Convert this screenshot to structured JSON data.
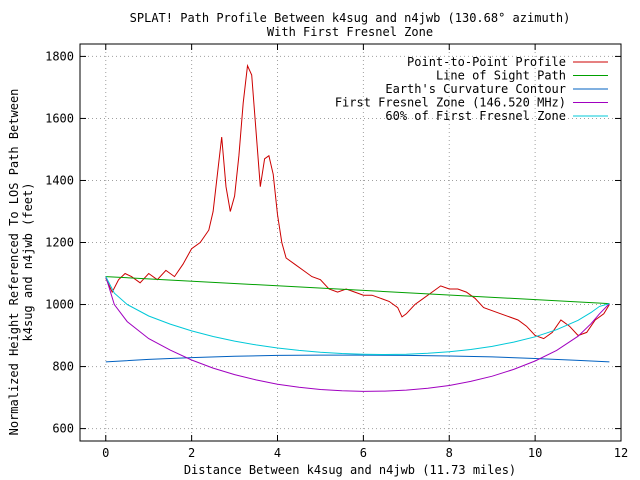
{
  "chart_data": {
    "type": "line",
    "title_line1": "SPLAT! Path Profile Between k4sug and n4jwb (130.68° azimuth)",
    "title_line2": "With First Fresnel Zone",
    "xlabel": "Distance Between k4sug and n4jwb (11.73 miles)",
    "ylabel_line1": "Normalized Height Referenced To LOS Path Between",
    "ylabel_line2": "k4sug and n4jwb (feet)",
    "xlim": [
      -0.6,
      12
    ],
    "ylim": [
      560,
      1840
    ],
    "x_ticks": [
      0,
      2,
      4,
      6,
      8,
      10,
      12
    ],
    "y_ticks": [
      600,
      800,
      1000,
      1200,
      1400,
      1600,
      1800
    ],
    "grid": true,
    "legend_position": "top-right",
    "series": [
      {
        "name": "Point-to-Point Profile",
        "color": "#cc0000",
        "x": [
          0,
          0.15,
          0.3,
          0.45,
          0.6,
          0.8,
          1.0,
          1.2,
          1.4,
          1.6,
          1.8,
          2.0,
          2.2,
          2.4,
          2.5,
          2.6,
          2.7,
          2.8,
          2.9,
          3.0,
          3.1,
          3.2,
          3.3,
          3.4,
          3.5,
          3.6,
          3.7,
          3.8,
          3.9,
          4.0,
          4.1,
          4.2,
          4.4,
          4.6,
          4.8,
          5.0,
          5.2,
          5.4,
          5.6,
          5.8,
          6.0,
          6.2,
          6.4,
          6.6,
          6.8,
          6.9,
          7.0,
          7.2,
          7.4,
          7.6,
          7.8,
          8.0,
          8.2,
          8.4,
          8.6,
          8.8,
          9.0,
          9.2,
          9.4,
          9.6,
          9.8,
          10.0,
          10.2,
          10.4,
          10.6,
          10.8,
          11.0,
          11.2,
          11.4,
          11.6,
          11.73
        ],
        "values": [
          1085,
          1040,
          1080,
          1100,
          1090,
          1070,
          1100,
          1080,
          1110,
          1090,
          1130,
          1180,
          1200,
          1240,
          1300,
          1420,
          1540,
          1380,
          1300,
          1350,
          1480,
          1650,
          1770,
          1740,
          1560,
          1380,
          1470,
          1480,
          1420,
          1290,
          1200,
          1150,
          1130,
          1110,
          1090,
          1080,
          1050,
          1040,
          1050,
          1040,
          1030,
          1030,
          1020,
          1010,
          990,
          960,
          970,
          1000,
          1020,
          1040,
          1060,
          1050,
          1050,
          1040,
          1020,
          990,
          980,
          970,
          960,
          950,
          930,
          900,
          890,
          910,
          950,
          930,
          900,
          910,
          950,
          970,
          1000
        ]
      },
      {
        "name": "Line of Sight Path",
        "color": "#00a000",
        "x": [
          0,
          11.73
        ],
        "values": [
          1090,
          1003
        ]
      },
      {
        "name": "Earth's Curvature Contour",
        "color": "#0060c0",
        "x": [
          0,
          1,
          2,
          3,
          4,
          5,
          5.865,
          7,
          8,
          9,
          10,
          11,
          11.73
        ],
        "values": [
          815,
          823,
          829,
          833,
          836,
          837,
          837,
          836,
          834,
          831,
          826,
          820,
          815
        ]
      },
      {
        "name": "First Fresnel Zone (146.520 MHz)",
        "color": "#a000c0",
        "x": [
          0,
          0.2,
          0.5,
          1,
          1.5,
          2,
          2.5,
          3,
          3.5,
          4,
          4.5,
          5,
          5.5,
          6,
          6.5,
          7,
          7.5,
          8,
          8.5,
          9,
          9.5,
          10,
          10.5,
          11,
          11.3,
          11.5,
          11.73
        ],
        "values": [
          1090,
          1000,
          945,
          890,
          853,
          821,
          795,
          774,
          757,
          743,
          733,
          726,
          722,
          720,
          721,
          724,
          730,
          739,
          752,
          769,
          791,
          818,
          852,
          898,
          938,
          970,
          1003
        ]
      },
      {
        "name": "60% of First Fresnel Zone",
        "color": "#00c8d8",
        "x": [
          0,
          0.2,
          0.5,
          1,
          1.5,
          2,
          2.5,
          3,
          3.5,
          4,
          4.5,
          5,
          5.5,
          6,
          6.5,
          7,
          7.5,
          8,
          8.5,
          9,
          9.5,
          10,
          10.5,
          11,
          11.3,
          11.5,
          11.73
        ],
        "values": [
          1090,
          1037,
          1000,
          963,
          937,
          915,
          897,
          882,
          870,
          860,
          852,
          846,
          842,
          840,
          839,
          840,
          843,
          848,
          855,
          865,
          879,
          896,
          919,
          949,
          974,
          994,
          1003
        ]
      }
    ]
  }
}
